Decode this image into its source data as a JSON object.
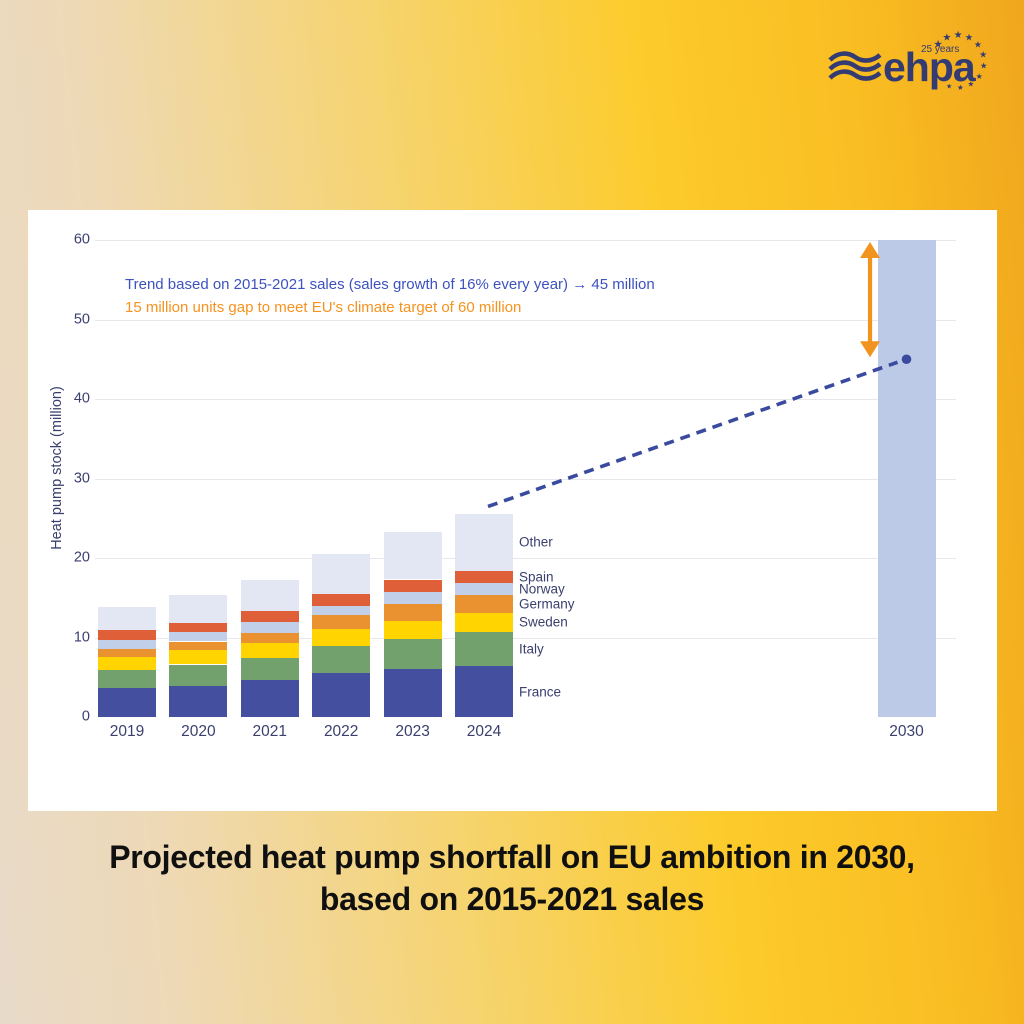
{
  "page": {
    "title_line1": "Projected heat pump shortfall on EU ambition in 2030,",
    "title_line2": "based on 2015-2021 sales",
    "title_color": "#101010",
    "background_colors": [
      "#e8dac9",
      "#fccb2b",
      "#f0a61d"
    ],
    "panel_color": "#ffffff"
  },
  "logo": {
    "brand": "ehpa",
    "anniversary": "25 years",
    "color": "#333b72",
    "icons": [
      "waves-icon",
      "eu-stars-arc-icon"
    ]
  },
  "chart_data": {
    "type": "bar",
    "stacked": true,
    "ylabel": "Heat pump stock (million)",
    "xlabel": "",
    "ylim": [
      0,
      60
    ],
    "yticks": [
      0,
      10,
      20,
      30,
      40,
      50,
      60
    ],
    "grid": true,
    "categories": [
      "2019",
      "2020",
      "2021",
      "2022",
      "2023",
      "2024"
    ],
    "series": [
      {
        "name": "France",
        "color": "#44509f",
        "values": [
          3.6,
          3.9,
          4.6,
          5.5,
          6.0,
          6.4
        ]
      },
      {
        "name": "Italy",
        "color": "#73a16e",
        "values": [
          2.3,
          2.7,
          2.8,
          3.4,
          3.8,
          4.3
        ]
      },
      {
        "name": "Sweden",
        "color": "#ffd400",
        "values": [
          1.6,
          1.8,
          1.9,
          2.2,
          2.3,
          2.4
        ]
      },
      {
        "name": "Germany",
        "color": "#e9922f",
        "values": [
          1.1,
          1.1,
          1.3,
          1.7,
          2.1,
          2.2
        ]
      },
      {
        "name": "Norway",
        "color": "#c2cfe9",
        "values": [
          1.1,
          1.2,
          1.4,
          1.2,
          1.5,
          1.5
        ]
      },
      {
        "name": "Spain",
        "color": "#de5f38",
        "values": [
          1.2,
          1.1,
          1.3,
          1.5,
          1.6,
          1.6
        ]
      },
      {
        "name": "Other",
        "color": "#e2e7f3",
        "values": [
          3.0,
          3.6,
          4.0,
          5.0,
          6.0,
          7.2
        ]
      }
    ],
    "legend_position": "right-of-last-bar",
    "target_bar": {
      "category": "2030",
      "value": 60,
      "color": "#bccae8"
    },
    "trend_point": {
      "category": "2030",
      "value": 45,
      "color": "#3a4a9e"
    },
    "trend_line": {
      "style": "dashed",
      "color": "#3a4a9e",
      "from_category": "2024",
      "to_category": "2030",
      "to_value": 45
    },
    "gap_arrow": {
      "from_value": 45,
      "to_value": 60,
      "color": "#f0941f"
    },
    "annotations": [
      {
        "text": "Trend based on 2015-2021 sales (sales growth of 16% every year) → 45 million",
        "color": "#3d52c0"
      },
      {
        "text": "15 million units gap to meet EU's climate target of 60 million",
        "color": "#f6921e"
      }
    ]
  }
}
